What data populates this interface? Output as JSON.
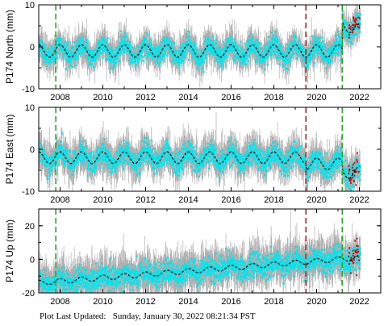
{
  "colors": {
    "data": "#00e5ee",
    "errorbar": "#b0b0b0",
    "model": "#000000",
    "outlier": "#e00000",
    "green_event": "#22aa22",
    "red_event": "#dd1111"
  },
  "footer": {
    "label": "Plot Last Updated:",
    "date": "Sunday, January 30, 2022 08:21:34 PST"
  },
  "chart_data": [
    {
      "type": "scatter",
      "title": "",
      "ylabel": "P174 North (mm)",
      "xlabel": "",
      "xlim": [
        2007.0,
        2023.0
      ],
      "ylim": [
        -10,
        10
      ],
      "yticks": [
        -10,
        0,
        10
      ],
      "xticks": [
        2008,
        2010,
        2012,
        2014,
        2016,
        2018,
        2020,
        2022
      ],
      "xtick_labels": [
        "2008",
        "2010",
        "2012",
        "2014",
        "2016",
        "2018",
        "2020",
        "2022"
      ],
      "event_lines": [
        {
          "x": 2007.8,
          "color": "green"
        },
        {
          "x": 2019.5,
          "color": "red"
        },
        {
          "x": 2021.2,
          "color": "green"
        }
      ],
      "model": {
        "trend": 0.0,
        "offset": -1.0,
        "seasonal_amp": 1.5,
        "steps": [
          {
            "x": 2021.2,
            "value": 6.5
          }
        ],
        "end_slope": -2.0
      },
      "noise_sd": 1.2,
      "error_sd": 1.6
    },
    {
      "type": "scatter",
      "title": "",
      "ylabel": "P174 East (mm)",
      "xlabel": "",
      "xlim": [
        2007.0,
        2023.0
      ],
      "ylim": [
        -10,
        10
      ],
      "yticks": [
        -10,
        0,
        10
      ],
      "xticks": [
        2008,
        2010,
        2012,
        2014,
        2016,
        2018,
        2020,
        2022
      ],
      "xtick_labels": [
        "2008",
        "2010",
        "2012",
        "2014",
        "2016",
        "2018",
        "2020",
        "2022"
      ],
      "event_lines": [
        {
          "x": 2007.8,
          "color": "green"
        },
        {
          "x": 2019.5,
          "color": "red"
        },
        {
          "x": 2021.2,
          "color": "green"
        }
      ],
      "model": {
        "trend": 0.0,
        "offset": -2.0,
        "seasonal_amp": 1.4,
        "steps": [
          {
            "x": 2019.5,
            "value": -1.5
          },
          {
            "x": 2021.2,
            "value": -2.0
          }
        ],
        "end_slope": 0.0
      },
      "noise_sd": 1.3,
      "error_sd": 1.8
    },
    {
      "type": "scatter",
      "title": "",
      "ylabel": "P174 Up (mm)",
      "xlabel": "",
      "xlim": [
        2007.0,
        2023.0
      ],
      "ylim": [
        -20,
        30
      ],
      "yticks": [
        -20,
        0,
        20
      ],
      "xticks": [
        2008,
        2010,
        2012,
        2014,
        2016,
        2018,
        2020,
        2022
      ],
      "xtick_labels": [
        "2008",
        "2010",
        "2012",
        "2014",
        "2016",
        "2018",
        "2020",
        "2022"
      ],
      "event_lines": [
        {
          "x": 2007.8,
          "color": "green"
        },
        {
          "x": 2019.5,
          "color": "red"
        },
        {
          "x": 2021.2,
          "color": "green"
        }
      ],
      "model": {
        "trend": 1.0,
        "offset": -14.0,
        "seasonal_amp": 1.5,
        "steps": [],
        "end_slope": 0.0
      },
      "noise_sd": 3.5,
      "error_sd": 5.0
    }
  ]
}
